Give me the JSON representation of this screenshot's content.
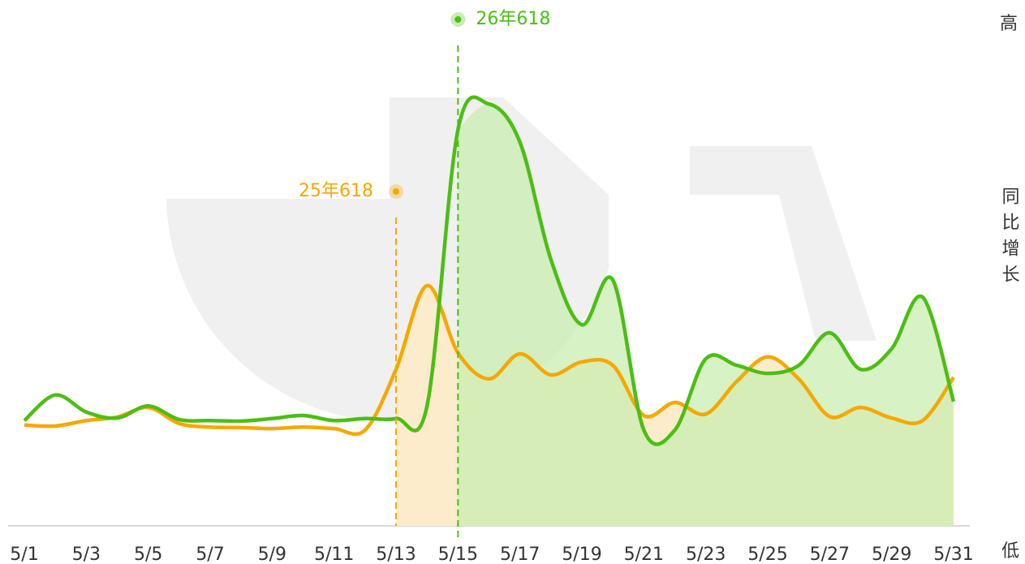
{
  "chart_data": {
    "type": "line",
    "y_top_label": "高",
    "y_label": "同比增长",
    "y_bottom_label": "低",
    "categories": [
      "5/1",
      null,
      "5/3",
      null,
      "5/5",
      null,
      "5/7",
      null,
      "5/9",
      null,
      "5/11",
      null,
      "5/13",
      null,
      "5/15",
      null,
      "5/17",
      null,
      "5/19",
      null,
      "5/21",
      null,
      "5/23",
      null,
      "5/25",
      null,
      "5/27",
      null,
      "5/29",
      null,
      "5/31"
    ],
    "ylim": [
      0,
      100
    ],
    "series": [
      {
        "name": "25年618",
        "color": "#f5a800",
        "fill": "#fdeccb",
        "values": [
          20.1,
          19.9,
          21.0,
          21.7,
          23.6,
          20.4,
          19.7,
          19.6,
          19.4,
          19.7,
          19.4,
          19.1,
          31.2,
          47.9,
          34.5,
          29.3,
          34.3,
          30.1,
          32.7,
          32.0,
          22.0,
          24.6,
          22.3,
          28.8,
          33.7,
          29.3,
          21.8,
          23.6,
          21.5,
          21.0,
          29.6
        ]
      },
      {
        "name": "26年618",
        "color": "#4cbe14",
        "fill": "#c9eeb0",
        "values": [
          21.0,
          26.1,
          22.7,
          21.5,
          23.9,
          21.2,
          21.0,
          20.9,
          21.4,
          22.0,
          21.0,
          21.4,
          21.4,
          23.9,
          79.0,
          84.1,
          76.5,
          53.1,
          40.1,
          49.0,
          19.1,
          19.1,
          33.3,
          32.0,
          30.4,
          32.0,
          38.5,
          31.2,
          35.3,
          45.6,
          24.8
        ]
      }
    ],
    "annotations": [
      {
        "text": "25年618",
        "x": "5/13",
        "color": "#f5a800"
      },
      {
        "text": "26年618",
        "x": "5/15",
        "color": "#4cbe14"
      }
    ]
  }
}
